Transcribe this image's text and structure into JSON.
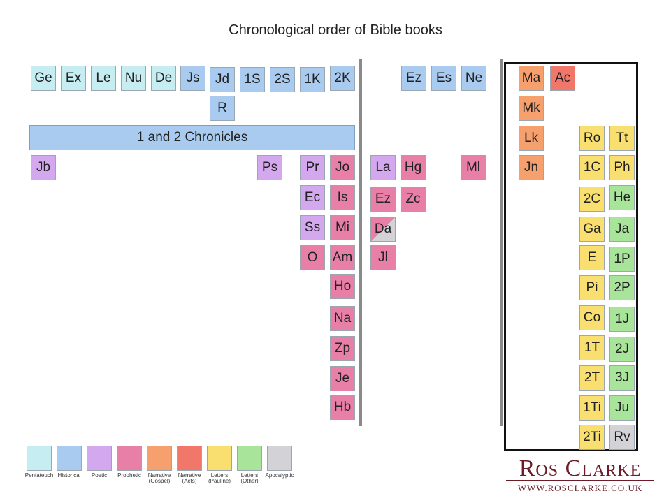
{
  "title": "Chronological order of Bible books",
  "colors": {
    "pentateuch": "#c6eef2",
    "historical": "#a9cbf0",
    "poetic": "#d4a8ee",
    "prophetic": "#e87fa6",
    "gospel": "#f6a06e",
    "acts": "#f0776a",
    "pauline": "#f8df70",
    "other": "#a8e49a",
    "apocalyptic": "#d3d2d6"
  },
  "wide_bar": {
    "label": "1 and 2 Chronicles",
    "category": "historical"
  },
  "books": [
    {
      "label": "Ge",
      "category": "pentateuch"
    },
    {
      "label": "Ex",
      "category": "pentateuch"
    },
    {
      "label": "Le",
      "category": "pentateuch"
    },
    {
      "label": "Nu",
      "category": "pentateuch"
    },
    {
      "label": "De",
      "category": "pentateuch"
    },
    {
      "label": "Js",
      "category": "historical"
    },
    {
      "label": "Jd",
      "category": "historical"
    },
    {
      "label": "1S",
      "category": "historical"
    },
    {
      "label": "2S",
      "category": "historical"
    },
    {
      "label": "1K",
      "category": "historical"
    },
    {
      "label": "2K",
      "category": "historical"
    },
    {
      "label": "R",
      "category": "historical"
    },
    {
      "label": "Ez",
      "category": "historical"
    },
    {
      "label": "Es",
      "category": "historical"
    },
    {
      "label": "Ne",
      "category": "historical"
    },
    {
      "label": "Jb",
      "category": "poetic"
    },
    {
      "label": "Ps",
      "category": "poetic"
    },
    {
      "label": "Pr",
      "category": "poetic"
    },
    {
      "label": "Ec",
      "category": "poetic"
    },
    {
      "label": "Ss",
      "category": "poetic"
    },
    {
      "label": "O",
      "category": "prophetic"
    },
    {
      "label": "Jo",
      "category": "prophetic"
    },
    {
      "label": "Is",
      "category": "prophetic"
    },
    {
      "label": "Mi",
      "category": "prophetic"
    },
    {
      "label": "Am",
      "category": "prophetic"
    },
    {
      "label": "Ho",
      "category": "prophetic"
    },
    {
      "label": "Na",
      "category": "prophetic"
    },
    {
      "label": "Zp",
      "category": "prophetic"
    },
    {
      "label": "Je",
      "category": "prophetic"
    },
    {
      "label": "Hb",
      "category": "prophetic"
    },
    {
      "label": "La",
      "category": "poetic"
    },
    {
      "label": "Hg",
      "category": "prophetic"
    },
    {
      "label": "Ml",
      "category": "prophetic"
    },
    {
      "label": "Ez",
      "category": "prophetic"
    },
    {
      "label": "Zc",
      "category": "prophetic"
    },
    {
      "label": "Da",
      "category": "prophetic-apocalyptic"
    },
    {
      "label": "Jl",
      "category": "prophetic"
    },
    {
      "label": "Ma",
      "category": "gospel"
    },
    {
      "label": "Ac",
      "category": "acts"
    },
    {
      "label": "Mk",
      "category": "gospel"
    },
    {
      "label": "Lk",
      "category": "gospel"
    },
    {
      "label": "Jn",
      "category": "gospel"
    },
    {
      "label": "Ro",
      "category": "pauline"
    },
    {
      "label": "1C",
      "category": "pauline"
    },
    {
      "label": "2C",
      "category": "pauline"
    },
    {
      "label": "Ga",
      "category": "pauline"
    },
    {
      "label": "E",
      "category": "pauline"
    },
    {
      "label": "Pi",
      "category": "pauline"
    },
    {
      "label": "Co",
      "category": "pauline"
    },
    {
      "label": "1T",
      "category": "pauline"
    },
    {
      "label": "2T",
      "category": "pauline"
    },
    {
      "label": "1Ti",
      "category": "pauline"
    },
    {
      "label": "2Ti",
      "category": "pauline"
    },
    {
      "label": "Tt",
      "category": "pauline"
    },
    {
      "label": "Ph",
      "category": "pauline"
    },
    {
      "label": "He",
      "category": "other"
    },
    {
      "label": "Ja",
      "category": "other"
    },
    {
      "label": "1P",
      "category": "other"
    },
    {
      "label": "2P",
      "category": "other"
    },
    {
      "label": "1J",
      "category": "other"
    },
    {
      "label": "2J",
      "category": "other"
    },
    {
      "label": "3J",
      "category": "other"
    },
    {
      "label": "Ju",
      "category": "other"
    },
    {
      "label": "Rv",
      "category": "apocalyptic"
    }
  ],
  "legend": [
    {
      "label": "Pentateuch",
      "category": "pentateuch"
    },
    {
      "label": "Historical",
      "category": "historical"
    },
    {
      "label": "Poetic",
      "category": "poetic"
    },
    {
      "label": "Prophetic",
      "category": "prophetic"
    },
    {
      "label": "Narrative\n(Gospel)",
      "category": "gospel"
    },
    {
      "label": "Narrative\n(Acts)",
      "category": "acts"
    },
    {
      "label": "Letters\n(Pauline)",
      "category": "pauline"
    },
    {
      "label": "Letters\n(Other)",
      "category": "other"
    },
    {
      "label": "Apocalyptic",
      "category": "apocalyptic"
    }
  ],
  "brand": {
    "name": "Ros Clarke",
    "url": "WWW.ROSCLARKE.CO.UK"
  }
}
